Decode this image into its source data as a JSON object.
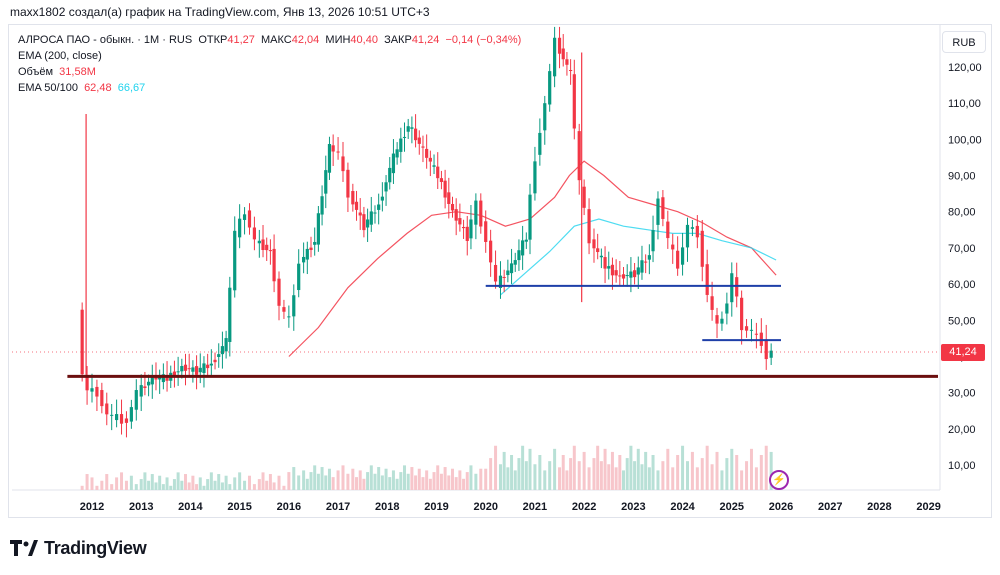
{
  "header": {
    "attribution": "maxx1802 создал(а) график на TradingView.com, Янв 13, 2026 10:51 UTC+3"
  },
  "legend": {
    "title": "АЛРОСА ПАО - обыкн. · 1M · RUS",
    "open_label": "ОТКР",
    "open_value": "41,27",
    "high_label": "МАКС",
    "high_value": "42,04",
    "low_label": "МИН",
    "low_value": "40,40",
    "close_label": "ЗАКР",
    "close_value": "41,24",
    "change": "−0,14 (−0,34%)",
    "ema200": "EMA (200, close)",
    "volume_label": "Объём",
    "volume_value": "31,58M",
    "ema_pair_label": "EMA 50/100",
    "ema50_value": "62,48",
    "ema100_value": "66,67"
  },
  "currency_button": "RUB",
  "price_badge": "41,24",
  "footer": {
    "brand": "TradingView"
  },
  "colors": {
    "up": "#089981",
    "down": "#f23645",
    "ema50": "#f23645",
    "ema100": "#22d3ee",
    "support_blue": "#1e3fa8",
    "support_dark": "#6b0f0f",
    "volume_up": "#b8e0d6",
    "volume_down": "#f7c6cb"
  },
  "chart_data": {
    "type": "candlestick",
    "interval": "1M",
    "currency": "RUB",
    "y_ticks": [
      "10,00",
      "20,00",
      "30,00",
      "40,00",
      "50,00",
      "60,00",
      "70,00",
      "80,00",
      "90,00",
      "100,00",
      "110,00",
      "120,00"
    ],
    "x_ticks": [
      "2012",
      "2013",
      "2014",
      "2015",
      "2016",
      "2017",
      "2018",
      "2019",
      "2020",
      "2021",
      "2022",
      "2023",
      "2024",
      "2025",
      "2026",
      "2027",
      "2028",
      "2029"
    ],
    "ylim": [
      0,
      127
    ],
    "last_price": 41.24,
    "horizontal_lines": [
      {
        "y": 59.5,
        "from": 2020.0,
        "to": 2026.0,
        "color": "blue"
      },
      {
        "y": 44.5,
        "from": 2024.4,
        "to": 2026.0,
        "color": "blue"
      },
      {
        "y": 34.5,
        "from": 2011.5,
        "to": 2029.5,
        "color": "darkred"
      }
    ],
    "price_path": [
      [
        2011.8,
        54
      ],
      [
        2011.9,
        34
      ],
      [
        2012.0,
        31
      ],
      [
        2012.2,
        30
      ],
      [
        2012.4,
        24
      ],
      [
        2012.6,
        23
      ],
      [
        2012.8,
        22
      ],
      [
        2013.0,
        30
      ],
      [
        2013.3,
        34
      ],
      [
        2013.6,
        34
      ],
      [
        2013.9,
        37
      ],
      [
        2014.2,
        36
      ],
      [
        2014.5,
        38
      ],
      [
        2014.8,
        44
      ],
      [
        2015.0,
        74
      ],
      [
        2015.2,
        80
      ],
      [
        2015.4,
        72
      ],
      [
        2015.7,
        69
      ],
      [
        2015.9,
        54
      ],
      [
        2016.1,
        50
      ],
      [
        2016.3,
        66
      ],
      [
        2016.6,
        72
      ],
      [
        2016.9,
        98
      ],
      [
        2017.1,
        96
      ],
      [
        2017.3,
        85
      ],
      [
        2017.6,
        76
      ],
      [
        2017.9,
        82
      ],
      [
        2018.2,
        95
      ],
      [
        2018.5,
        104
      ],
      [
        2018.8,
        97
      ],
      [
        2019.1,
        90
      ],
      [
        2019.4,
        80
      ],
      [
        2019.7,
        73
      ],
      [
        2019.9,
        82
      ],
      [
        2020.1,
        72
      ],
      [
        2020.3,
        60
      ],
      [
        2020.6,
        65
      ],
      [
        2020.9,
        73
      ],
      [
        2021.1,
        95
      ],
      [
        2021.3,
        110
      ],
      [
        2021.5,
        127
      ],
      [
        2021.8,
        118
      ],
      [
        2022.0,
        88
      ],
      [
        2022.2,
        72
      ],
      [
        2022.5,
        65
      ],
      [
        2022.8,
        62
      ],
      [
        2023.1,
        63
      ],
      [
        2023.4,
        68
      ],
      [
        2023.6,
        84
      ],
      [
        2023.8,
        72
      ],
      [
        2024.0,
        65
      ],
      [
        2024.2,
        76
      ],
      [
        2024.4,
        74
      ],
      [
        2024.6,
        57
      ],
      [
        2024.8,
        48
      ],
      [
        2025.0,
        55
      ],
      [
        2025.1,
        63
      ],
      [
        2025.3,
        48
      ],
      [
        2025.5,
        47
      ],
      [
        2025.7,
        44
      ],
      [
        2025.8,
        40
      ],
      [
        2025.9,
        41.24
      ]
    ],
    "ema50_path": [
      [
        2016.0,
        40
      ],
      [
        2016.6,
        48
      ],
      [
        2017.2,
        59
      ],
      [
        2017.8,
        67
      ],
      [
        2018.4,
        74
      ],
      [
        2018.9,
        79
      ],
      [
        2019.4,
        80
      ],
      [
        2019.9,
        79
      ],
      [
        2020.4,
        76
      ],
      [
        2020.9,
        78
      ],
      [
        2021.4,
        84
      ],
      [
        2021.7,
        90
      ],
      [
        2022.0,
        94
      ],
      [
        2022.4,
        90
      ],
      [
        2022.9,
        84
      ],
      [
        2023.4,
        82
      ],
      [
        2023.9,
        80
      ],
      [
        2024.4,
        77
      ],
      [
        2024.9,
        73
      ],
      [
        2025.4,
        70
      ],
      [
        2025.9,
        62.48
      ]
    ],
    "ema100_path": [
      [
        2020.3,
        57
      ],
      [
        2020.8,
        63
      ],
      [
        2021.3,
        69
      ],
      [
        2021.8,
        76
      ],
      [
        2022.3,
        78
      ],
      [
        2022.8,
        76
      ],
      [
        2023.3,
        75
      ],
      [
        2023.8,
        74
      ],
      [
        2024.3,
        74
      ],
      [
        2024.8,
        72
      ],
      [
        2025.4,
        70
      ],
      [
        2025.9,
        66.67
      ]
    ]
  }
}
